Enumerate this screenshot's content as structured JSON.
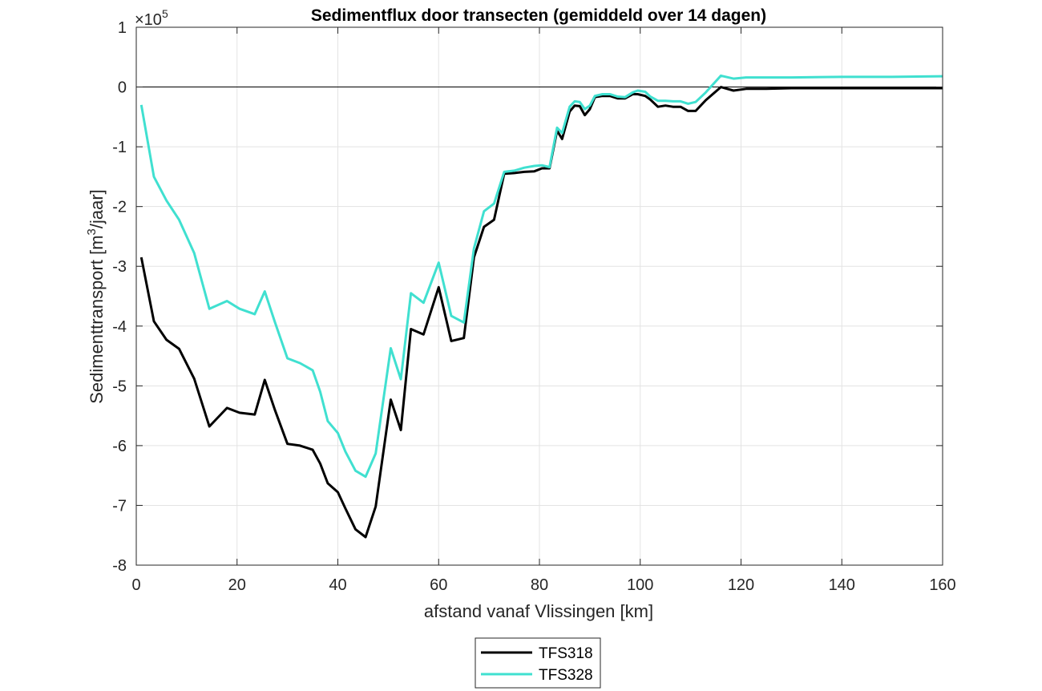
{
  "chart_data": {
    "type": "line",
    "title": "Sedimentflux door transecten (gemiddeld over 14 dagen)",
    "xlabel": "afstand vanaf Vlissingen [km]",
    "ylabel_main": "Sedimenttransport [m",
    "ylabel_sup": "3",
    "ylabel_end": "/jaar]",
    "exponent_prefix": "×10",
    "exponent_power": "5",
    "xlim": [
      0,
      160
    ],
    "ylim": [
      -8,
      1
    ],
    "xticks": [
      0,
      20,
      40,
      60,
      80,
      100,
      120,
      140,
      160
    ],
    "yticks": [
      1,
      0,
      -1,
      -2,
      -3,
      -4,
      -5,
      -6,
      -7,
      -8
    ],
    "grid": true,
    "zero_line": true,
    "legend_position": "bottom-outside",
    "series": [
      {
        "name": "TFS318",
        "color": "#000000",
        "x": [
          1,
          3.5,
          6,
          8.5,
          11.5,
          14.5,
          18,
          20.5,
          23.5,
          25.5,
          27.5,
          30,
          32.5,
          35,
          36.5,
          38,
          40,
          41.5,
          43.5,
          45.5,
          47.5,
          50.5,
          52.5,
          54.5,
          57,
          60,
          62.5,
          65,
          67,
          69,
          71,
          73,
          75,
          77,
          79,
          80.5,
          82,
          83.5,
          84.5,
          86,
          87,
          88,
          89,
          90,
          91,
          92.5,
          94,
          95.5,
          97,
          98.5,
          99.5,
          101,
          102,
          103.5,
          105,
          106.5,
          108,
          109.5,
          111,
          113,
          116,
          118.5,
          121,
          125,
          130,
          140,
          150,
          160
        ],
        "y": [
          -2.85,
          -3.92,
          -4.23,
          -4.38,
          -4.88,
          -5.68,
          -5.37,
          -5.45,
          -5.48,
          -4.9,
          -5.4,
          -5.97,
          -6.0,
          -6.07,
          -6.3,
          -6.63,
          -6.78,
          -7.05,
          -7.4,
          -7.53,
          -7.02,
          -5.23,
          -5.74,
          -4.05,
          -4.14,
          -3.35,
          -4.25,
          -4.2,
          -2.85,
          -2.34,
          -2.22,
          -1.45,
          -1.44,
          -1.42,
          -1.41,
          -1.36,
          -1.36,
          -0.73,
          -0.87,
          -0.41,
          -0.31,
          -0.32,
          -0.47,
          -0.37,
          -0.17,
          -0.15,
          -0.15,
          -0.19,
          -0.19,
          -0.12,
          -0.12,
          -0.15,
          -0.21,
          -0.33,
          -0.31,
          -0.33,
          -0.33,
          -0.4,
          -0.4,
          -0.22,
          0.0,
          -0.06,
          -0.03,
          -0.03,
          -0.02,
          -0.02,
          -0.02,
          -0.02
        ]
      },
      {
        "name": "TFS328",
        "color": "#40E0D0",
        "x": [
          1,
          3.5,
          6,
          8.5,
          11.5,
          14.5,
          18,
          20.5,
          23.5,
          25.5,
          27.5,
          30,
          32.5,
          35,
          36.5,
          38,
          40,
          41.5,
          43.5,
          45.5,
          47.5,
          50.5,
          52.5,
          54.5,
          57,
          60,
          62.5,
          65,
          67,
          69,
          71,
          73,
          75,
          77,
          79,
          80.5,
          82,
          83.5,
          84.5,
          86,
          87,
          88,
          89,
          90,
          91,
          92.5,
          94,
          95.5,
          97,
          98.5,
          99.5,
          101,
          102,
          103.5,
          105,
          106.5,
          108,
          109.5,
          111,
          113,
          116,
          118.5,
          121,
          125,
          130,
          140,
          150,
          160
        ],
        "y": [
          -0.3,
          -1.5,
          -1.9,
          -2.22,
          -2.78,
          -3.71,
          -3.58,
          -3.71,
          -3.8,
          -3.42,
          -3.93,
          -4.54,
          -4.62,
          -4.74,
          -5.1,
          -5.59,
          -5.79,
          -6.1,
          -6.42,
          -6.52,
          -6.13,
          -4.37,
          -4.89,
          -3.45,
          -3.61,
          -2.94,
          -3.83,
          -3.94,
          -2.7,
          -2.08,
          -1.95,
          -1.42,
          -1.4,
          -1.35,
          -1.32,
          -1.31,
          -1.34,
          -0.68,
          -0.77,
          -0.33,
          -0.24,
          -0.25,
          -0.37,
          -0.31,
          -0.15,
          -0.12,
          -0.12,
          -0.16,
          -0.17,
          -0.09,
          -0.06,
          -0.08,
          -0.16,
          -0.23,
          -0.23,
          -0.24,
          -0.24,
          -0.28,
          -0.25,
          -0.09,
          0.19,
          0.14,
          0.16,
          0.16,
          0.16,
          0.17,
          0.17,
          0.18
        ]
      }
    ]
  }
}
